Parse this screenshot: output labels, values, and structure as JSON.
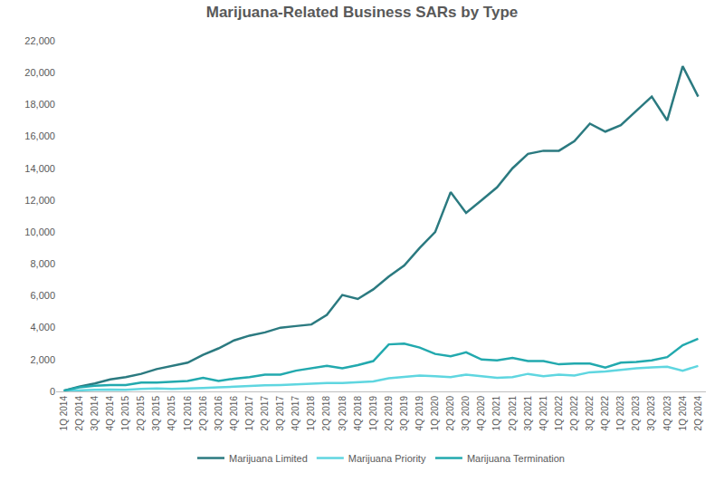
{
  "chart_data": {
    "type": "line",
    "title": "Marijuana-Related Business SARs by Type",
    "categories": [
      "1Q 2014",
      "2Q 2014",
      "3Q 2014",
      "4Q 2014",
      "1Q 2015",
      "2Q 2015",
      "3Q 2015",
      "4Q 2015",
      "1Q 2016",
      "2Q 2016",
      "3Q 2016",
      "4Q 2016",
      "1Q 2017",
      "2Q 2017",
      "3Q 2017",
      "4Q 2017",
      "1Q 2018",
      "2Q 2018",
      "3Q 2018",
      "4Q 2018",
      "1Q 2019",
      "2Q 2019",
      "3Q 2019",
      "4Q 2019",
      "1Q 2020",
      "2Q 2020",
      "3Q 2020",
      "4Q 2020",
      "1Q 2021",
      "2Q 2021",
      "3Q 2021",
      "4Q 2021",
      "1Q 2022",
      "2Q 2022",
      "3Q 2022",
      "4Q 2022",
      "1Q 2023",
      "2Q 2023",
      "3Q 2023",
      "4Q 2023",
      "1Q 2024",
      "2Q 2024"
    ],
    "series": [
      {
        "name": "Marijuana Limited",
        "color": "#2b7a80",
        "values": [
          50,
          300,
          500,
          750,
          900,
          1100,
          1400,
          1600,
          1800,
          2300,
          2700,
          3200,
          3500,
          3700,
          4000,
          4100,
          4200,
          4800,
          6050,
          5800,
          6400,
          7200,
          7900,
          9000,
          10000,
          12500,
          11200,
          12000,
          12800,
          14000,
          14900,
          15100,
          15100,
          15700,
          16800,
          16300,
          16700,
          17600,
          18500,
          17000,
          20400,
          18500
        ]
      },
      {
        "name": "Marijuana Priority",
        "color": "#5fd6e0",
        "values": [
          30,
          80,
          100,
          120,
          100,
          150,
          180,
          150,
          200,
          220,
          250,
          300,
          350,
          380,
          400,
          450,
          500,
          520,
          520,
          560,
          620,
          820,
          900,
          1000,
          950,
          900,
          1050,
          950,
          850,
          900,
          1100,
          950,
          1050,
          1000,
          1200,
          1250,
          1350,
          1450,
          1500,
          1550,
          1300,
          1600
        ]
      },
      {
        "name": "Marijuana Termination",
        "color": "#22a9ae",
        "values": [
          50,
          250,
          350,
          400,
          400,
          550,
          550,
          580,
          650,
          850,
          650,
          800,
          900,
          1050,
          1050,
          1300,
          1450,
          1600,
          1450,
          1650,
          1900,
          2950,
          3000,
          2750,
          2350,
          2200,
          2450,
          2000,
          1950,
          2100,
          1900,
          1900,
          1700,
          1750,
          1750,
          1500,
          1800,
          1850,
          1950,
          2150,
          2900,
          3300
        ]
      }
    ],
    "ylim": [
      0,
      22000
    ],
    "yticks": [
      0,
      {
        "value": 2000,
        "label": "2,000"
      },
      {
        "value": 4000,
        "label": "4,000"
      },
      {
        "value": 6000,
        "label": "6,000"
      },
      {
        "value": 8000,
        "label": "8,000"
      },
      {
        "value": 10000,
        "label": "10,000"
      },
      {
        "value": 12000,
        "label": "12,000"
      },
      {
        "value": 14000,
        "label": "14,000"
      },
      {
        "value": 16000,
        "label": "16,000"
      },
      {
        "value": 18000,
        "label": "18,000"
      },
      {
        "value": 20000,
        "label": "20,000"
      },
      {
        "value": 22000,
        "label": "22,000"
      }
    ],
    "grid": false,
    "legend": "bottom"
  }
}
